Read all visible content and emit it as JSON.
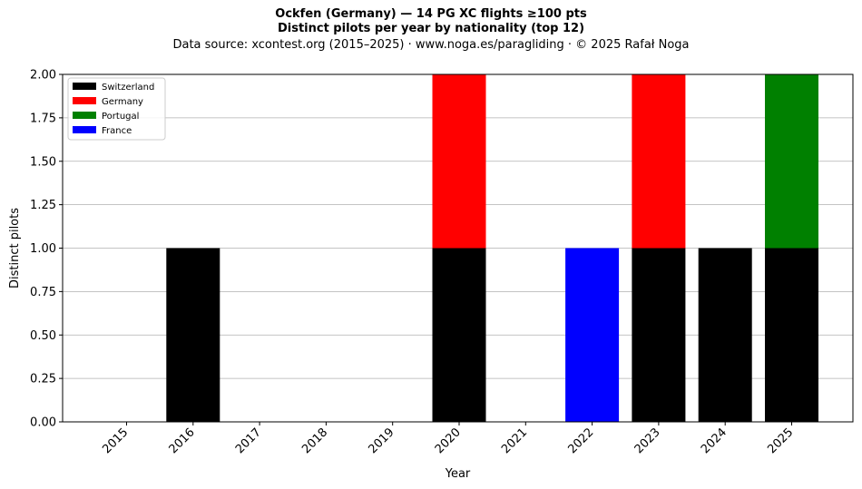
{
  "chart_data": {
    "type": "bar",
    "stacked": true,
    "title": "Ockfen (Germany)  —  14 PG XC flights ≥100 pts",
    "subtitle": "Distinct pilots per year by nationality (top 12)",
    "source": "Data source: xcontest.org (2015–2025)  ·  www.noga.es/paragliding  ·  © 2025 Rafał Noga",
    "xlabel": "Year",
    "ylabel": "Distinct pilots",
    "ylim": [
      0,
      2
    ],
    "yticks": [
      "0.00",
      "0.25",
      "0.50",
      "0.75",
      "1.00",
      "1.25",
      "1.50",
      "1.75",
      "2.00"
    ],
    "categories": [
      "2015",
      "2016",
      "2017",
      "2018",
      "2019",
      "2020",
      "2021",
      "2022",
      "2023",
      "2024",
      "2025"
    ],
    "series": [
      {
        "name": "Switzerland",
        "color": "#000000",
        "values": [
          0,
          1,
          0,
          0,
          0,
          1,
          0,
          0,
          1,
          1,
          1
        ]
      },
      {
        "name": "Germany",
        "color": "#ff0000",
        "values": [
          0,
          0,
          0,
          0,
          0,
          1,
          0,
          0,
          1,
          0,
          0
        ]
      },
      {
        "name": "Portugal",
        "color": "#008000",
        "values": [
          0,
          0,
          0,
          0,
          0,
          0,
          0,
          0,
          0,
          0,
          1
        ]
      },
      {
        "name": "France",
        "color": "#0000ff",
        "values": [
          0,
          0,
          0,
          0,
          0,
          0,
          0,
          1,
          0,
          0,
          0
        ]
      }
    ],
    "grid": "y",
    "legend_position": "top-left"
  }
}
